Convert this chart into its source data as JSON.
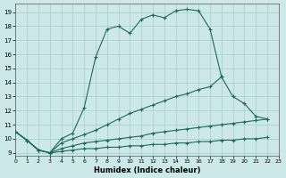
{
  "xlabel": "Humidex (Indice chaleur)",
  "background_color": "#cce8e8",
  "grid_color": "#aacccc",
  "line_color": "#1a6b5a",
  "xlim": [
    0,
    23
  ],
  "ylim": [
    8.8,
    19.6
  ],
  "xticks": [
    0,
    1,
    2,
    3,
    4,
    5,
    6,
    7,
    8,
    9,
    10,
    11,
    12,
    13,
    14,
    15,
    16,
    17,
    18,
    19,
    20,
    21,
    22,
    23
  ],
  "yticks": [
    9,
    10,
    11,
    12,
    13,
    14,
    15,
    16,
    17,
    18,
    19
  ],
  "series": [
    {
      "x": [
        0,
        1,
        2,
        3,
        4,
        5,
        6,
        7,
        8,
        9,
        10,
        11,
        12,
        13,
        14,
        15,
        16,
        17,
        18
      ],
      "y": [
        10.5,
        9.9,
        9.2,
        9.0,
        10.0,
        10.4,
        12.2,
        15.8,
        17.8,
        18.0,
        17.5,
        18.5,
        18.8,
        18.6,
        19.1,
        19.2,
        19.1,
        17.8,
        14.4
      ]
    },
    {
      "x": [
        0,
        1,
        2,
        3,
        4,
        5,
        6,
        7,
        8,
        9,
        10,
        11,
        12,
        13,
        14,
        15,
        16,
        17,
        18,
        19,
        20,
        21,
        22,
        23
      ],
      "y": [
        10.5,
        9.9,
        9.2,
        9.0,
        9.7,
        10.0,
        10.3,
        10.6,
        11.0,
        11.4,
        11.8,
        12.1,
        12.4,
        12.7,
        13.0,
        13.2,
        13.5,
        13.7,
        14.4,
        13.0,
        12.5,
        11.6,
        11.4,
        null
      ]
    },
    {
      "x": [
        0,
        1,
        2,
        3,
        4,
        5,
        6,
        7,
        8,
        9,
        10,
        11,
        12,
        13,
        14,
        15,
        16,
        17,
        18,
        19,
        20,
        21,
        22,
        23
      ],
      "y": [
        10.5,
        9.9,
        9.2,
        9.0,
        9.3,
        9.5,
        9.7,
        9.8,
        9.9,
        10.0,
        10.1,
        10.2,
        10.4,
        10.5,
        10.6,
        10.7,
        10.8,
        10.9,
        11.0,
        11.1,
        11.2,
        11.3,
        11.4,
        null
      ]
    },
    {
      "x": [
        0,
        1,
        2,
        3,
        4,
        5,
        6,
        7,
        8,
        9,
        10,
        11,
        12,
        13,
        14,
        15,
        16,
        17,
        18,
        19,
        20,
        21,
        22,
        23
      ],
      "y": [
        10.5,
        9.9,
        9.2,
        9.0,
        9.1,
        9.2,
        9.3,
        9.3,
        9.4,
        9.4,
        9.5,
        9.5,
        9.6,
        9.6,
        9.7,
        9.7,
        9.8,
        9.8,
        9.9,
        9.9,
        10.0,
        10.0,
        10.1,
        null
      ]
    }
  ]
}
